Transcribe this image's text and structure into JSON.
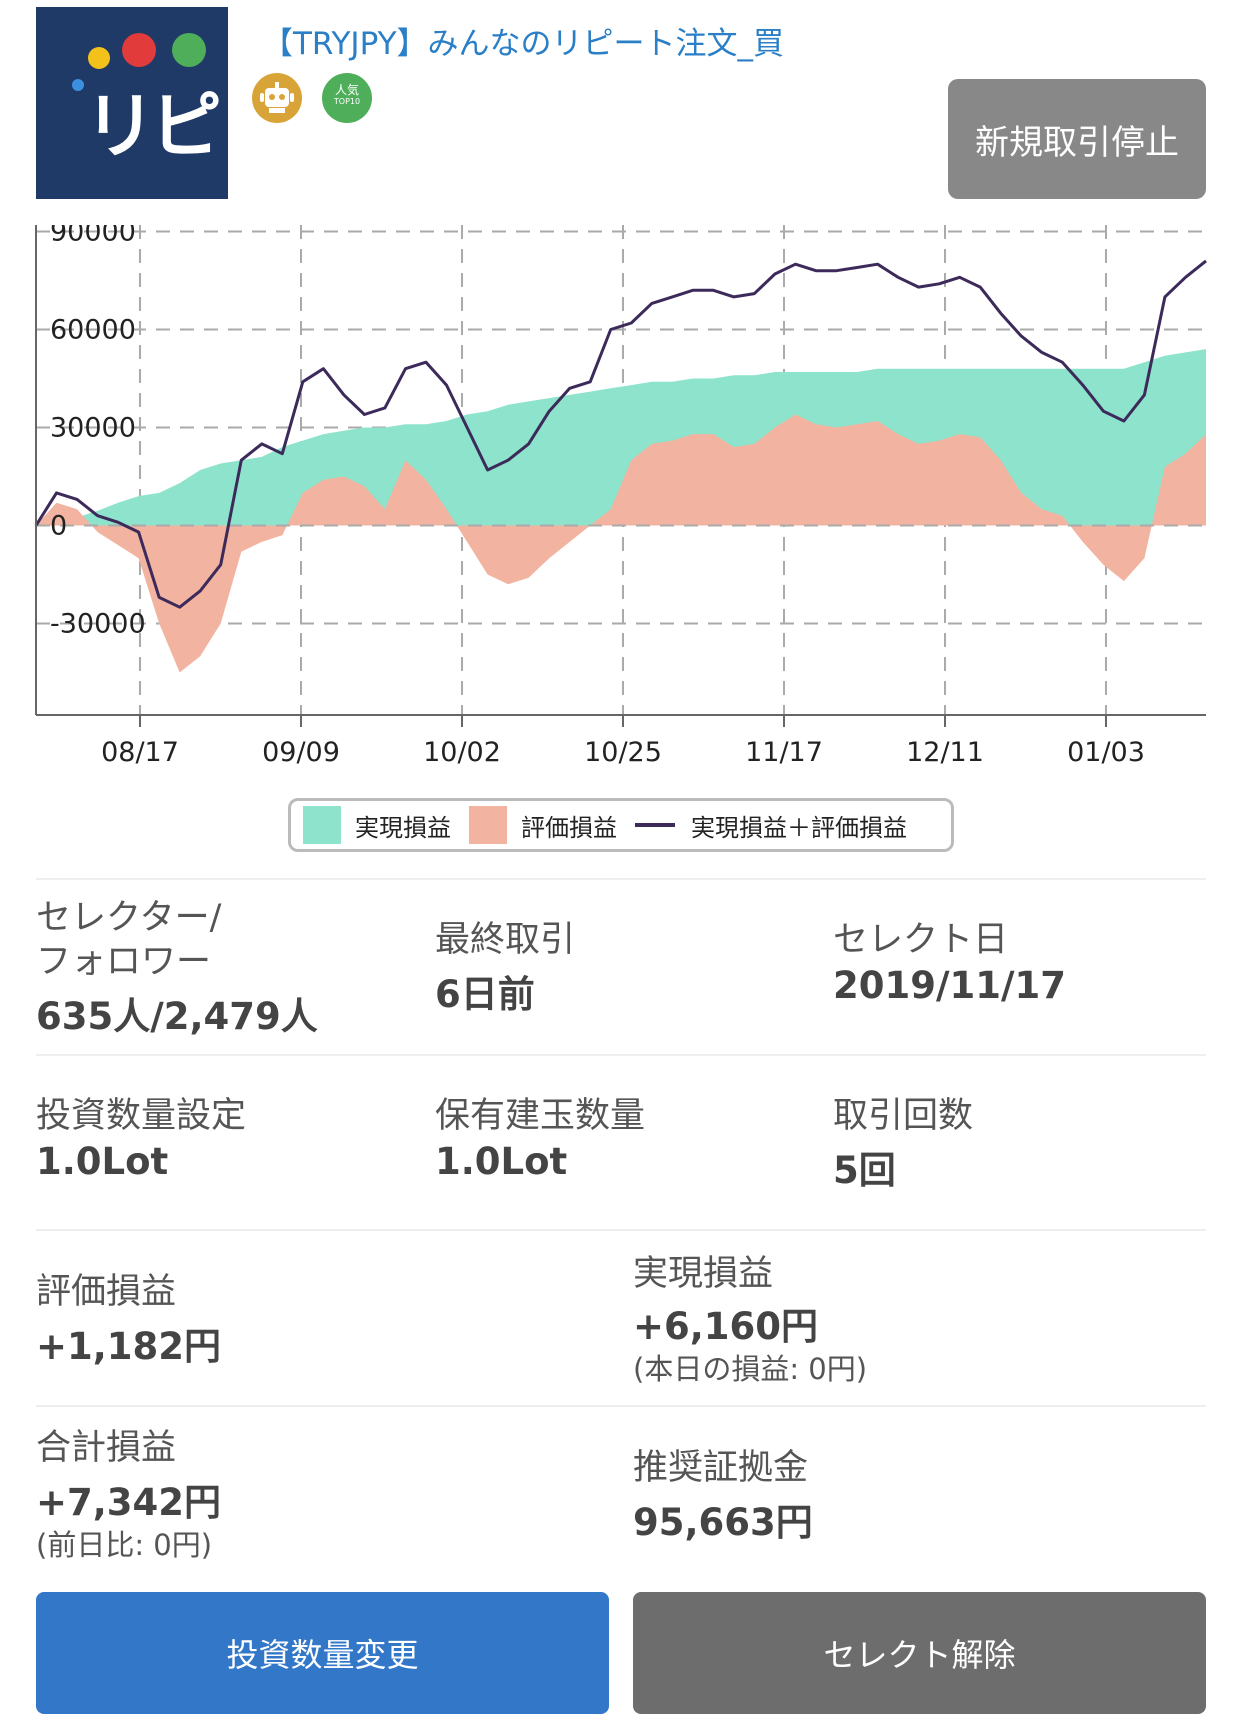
{
  "header": {
    "logo_text": "リピ",
    "title": "【TRYJPY】みんなのリピート注文_買",
    "badge_popular_line1": "人気",
    "badge_popular_line2": "TOP10",
    "stop_button": "新規取引停止"
  },
  "colors": {
    "realized": "#8de3cb",
    "unrealized": "#f2b4a0",
    "total_line": "#3c2a5a",
    "primary_button": "#3378c8",
    "secondary_button": "#6d6d6d",
    "logo_bg": "#1f3a66"
  },
  "icons": [
    "robot-badge-icon",
    "popular-top10-badge-icon"
  ],
  "chart_data": {
    "type": "area",
    "x_ticks": [
      "08/17",
      "09/09",
      "10/02",
      "10/25",
      "11/17",
      "12/11",
      "01/03"
    ],
    "y_ticks": [
      90000,
      60000,
      30000,
      0,
      -30000
    ],
    "ylim": [
      -58000,
      92000
    ],
    "grid": true,
    "legend_position": "bottom",
    "x": [
      "08/02",
      "08/05",
      "08/08",
      "08/11",
      "08/14",
      "08/17",
      "08/20",
      "08/23",
      "08/26",
      "08/29",
      "09/01",
      "09/04",
      "09/07",
      "09/09",
      "09/12",
      "09/15",
      "09/18",
      "09/21",
      "09/24",
      "09/27",
      "09/30",
      "10/02",
      "10/05",
      "10/08",
      "10/11",
      "10/14",
      "10/17",
      "10/20",
      "10/23",
      "10/25",
      "10/28",
      "10/31",
      "11/03",
      "11/06",
      "11/09",
      "11/12",
      "11/15",
      "11/17",
      "11/20",
      "11/23",
      "11/26",
      "11/29",
      "12/02",
      "12/05",
      "12/08",
      "12/11",
      "12/14",
      "12/17",
      "12/20",
      "12/23",
      "12/26",
      "12/29",
      "01/01",
      "01/03",
      "01/06",
      "01/09",
      "01/12",
      "01/15"
    ],
    "series": [
      {
        "name": "実現損益",
        "kind": "area",
        "values": [
          0,
          1000,
          2500,
          4500,
          7000,
          9000,
          10000,
          13000,
          17000,
          19000,
          20000,
          21000,
          24000,
          26000,
          28000,
          29000,
          30000,
          30000,
          31000,
          31000,
          32000,
          34000,
          35000,
          37000,
          38000,
          39000,
          40000,
          41000,
          42000,
          43000,
          44000,
          44000,
          45000,
          45000,
          46000,
          46000,
          47000,
          47000,
          47000,
          47000,
          47000,
          48000,
          48000,
          48000,
          48000,
          48000,
          48000,
          48000,
          48000,
          48000,
          48000,
          48000,
          48000,
          48000,
          50000,
          52000,
          53000,
          54000
        ]
      },
      {
        "name": "評価損益",
        "kind": "area",
        "values": [
          0,
          7000,
          5000,
          -2000,
          -6000,
          -10000,
          -30000,
          -45000,
          -40000,
          -30000,
          -8000,
          -5000,
          -3000,
          10000,
          14000,
          15000,
          12000,
          5000,
          20000,
          14000,
          5000,
          -5000,
          -15000,
          -18000,
          -16000,
          -10000,
          -5000,
          0,
          5000,
          20000,
          25000,
          26000,
          28000,
          28000,
          24000,
          25000,
          30000,
          34000,
          31000,
          30000,
          31000,
          32000,
          28000,
          25000,
          26000,
          28000,
          27000,
          20000,
          10000,
          5000,
          3000,
          -5000,
          -12000,
          -17000,
          -10000,
          18000,
          22000,
          28000
        ]
      },
      {
        "name": "実現損益＋評価損益",
        "kind": "line",
        "values": [
          0,
          10000,
          8000,
          3000,
          1000,
          -2000,
          -22000,
          -25000,
          -20000,
          -12000,
          20000,
          25000,
          22000,
          44000,
          48000,
          40000,
          34000,
          36000,
          48000,
          50000,
          43000,
          30000,
          17000,
          20000,
          25000,
          35000,
          42000,
          44000,
          60000,
          62000,
          68000,
          70000,
          72000,
          72000,
          70000,
          71000,
          77000,
          80000,
          78000,
          78000,
          79000,
          80000,
          76000,
          73000,
          74000,
          76000,
          73000,
          65000,
          58000,
          53000,
          50000,
          43000,
          35000,
          32000,
          40000,
          70000,
          76000,
          81000
        ]
      }
    ]
  },
  "stats": {
    "selector_label_line1": "セレクター/",
    "selector_label_line2": "フォロワー",
    "selector_value": "635人/2,479人",
    "last_trade_label": "最終取引",
    "last_trade_value": "6日前",
    "select_date_label": "セレクト日",
    "select_date_value": "2019/11/17",
    "invest_qty_label": "投資数量設定",
    "invest_qty_value": "1.0Lot",
    "position_qty_label": "保有建玉数量",
    "position_qty_value": "1.0Lot",
    "trade_count_label": "取引回数",
    "trade_count_value": "5回",
    "unrealized_label": "評価損益",
    "unrealized_value": "+1,182円",
    "realized_label": "実現損益",
    "realized_value": "+6,160円",
    "realized_today": "(本日の損益: 0円)",
    "total_label": "合計損益",
    "total_value": "+7,342円",
    "total_prev_day": "(前日比: 0円)",
    "margin_label": "推奨証拠金",
    "margin_value": "95,663円"
  },
  "buttons": {
    "change_qty": "投資数量変更",
    "unselect": "セレクト解除"
  }
}
